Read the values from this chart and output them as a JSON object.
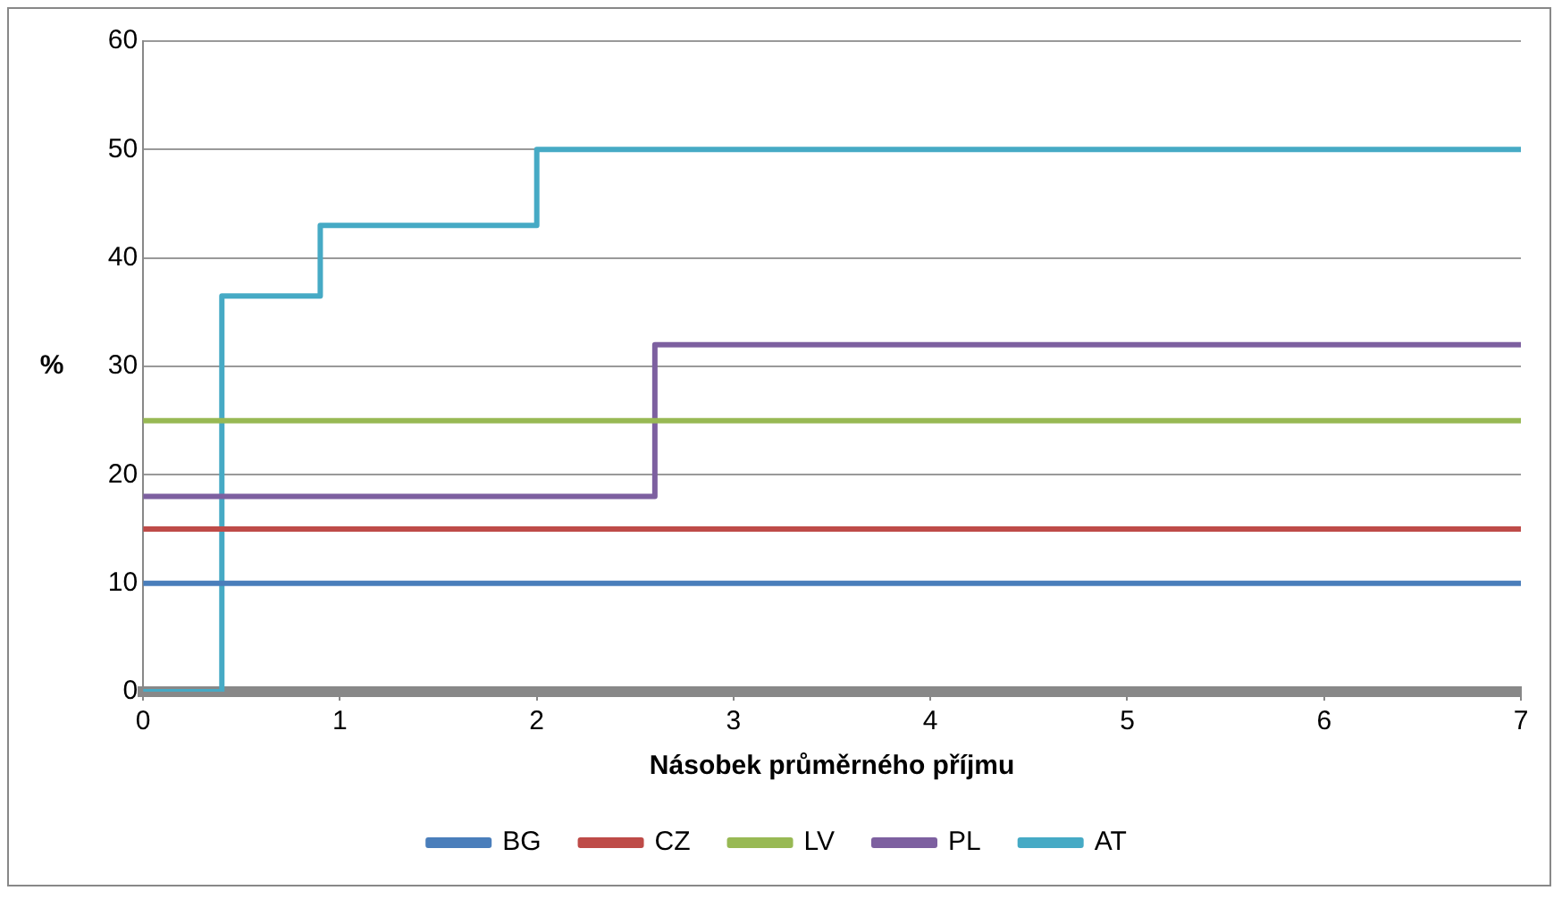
{
  "chart_data": {
    "type": "step",
    "xlabel": "Násobek průměrného příjmu",
    "ylabel": "%",
    "xlim": [
      0,
      7
    ],
    "xticks": [
      0,
      1,
      2,
      3,
      4,
      5,
      6,
      7
    ],
    "ylim": [
      0,
      60
    ],
    "yticks": [
      0,
      10,
      20,
      30,
      40,
      50,
      60
    ],
    "grid": "y",
    "legend": "bottom",
    "marker": "none",
    "line_style": "solid",
    "series": [
      {
        "name": "BG",
        "color": "#4a7ebb",
        "x": [
          0,
          7
        ],
        "values": [
          10,
          10
        ]
      },
      {
        "name": "CZ",
        "color": "#be4b48",
        "x": [
          0,
          7
        ],
        "values": [
          15,
          15
        ]
      },
      {
        "name": "LV",
        "color": "#98b954",
        "x": [
          0,
          7
        ],
        "values": [
          25,
          25
        ]
      },
      {
        "name": "PL",
        "color": "#7d60a0",
        "x": [
          0,
          2.6,
          7
        ],
        "values": [
          18,
          32,
          32
        ]
      },
      {
        "name": "AT",
        "color": "#46aac5",
        "x": [
          0,
          0.4,
          0.9,
          2,
          7
        ],
        "values": [
          0,
          36.5,
          43,
          50,
          50
        ]
      }
    ]
  }
}
